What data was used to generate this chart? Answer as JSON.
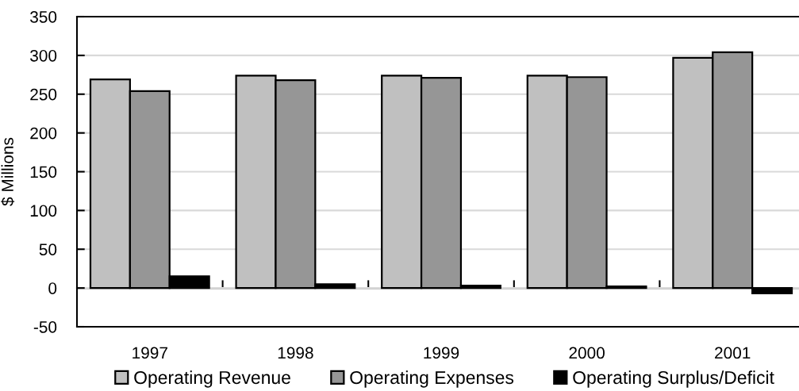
{
  "chart_data": {
    "type": "bar",
    "categories": [
      "1997",
      "1998",
      "1999",
      "2000",
      "2001"
    ],
    "series": [
      {
        "name": "Operating Revenue",
        "color": "#c0c0c0",
        "values": [
          269,
          274,
          274,
          274,
          297
        ]
      },
      {
        "name": "Operating Expenses",
        "color": "#969696",
        "values": [
          254,
          268,
          271,
          272,
          304
        ]
      },
      {
        "name": "Operating Surplus/Deficit",
        "color": "#000000",
        "values": [
          15,
          5,
          3,
          2,
          -7
        ]
      }
    ],
    "ylabel": "$ Millions",
    "ylim": [
      -50,
      350
    ],
    "yticks": [
      -50,
      0,
      50,
      100,
      150,
      200,
      250,
      300,
      350
    ],
    "grid": "y",
    "legend": "bottom"
  }
}
